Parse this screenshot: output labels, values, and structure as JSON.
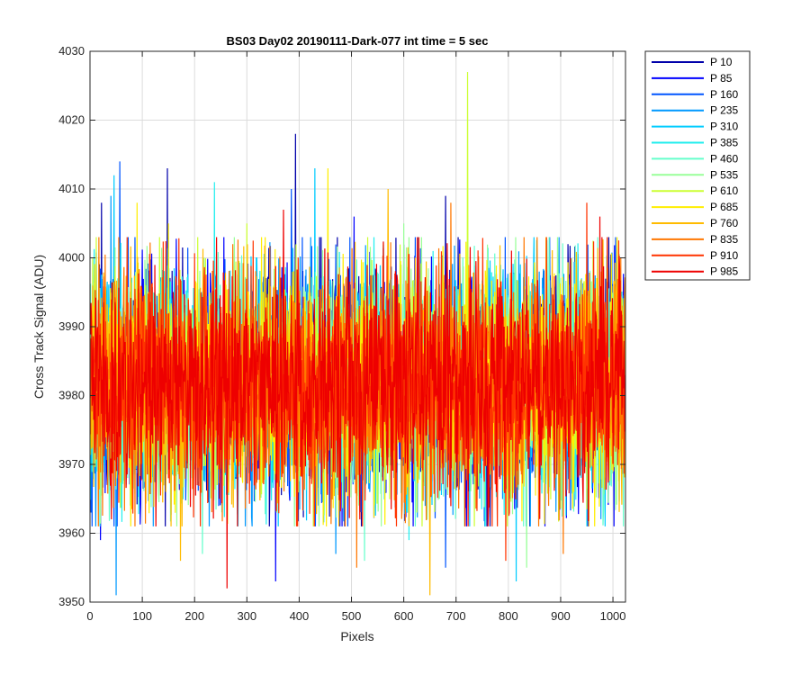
{
  "chart_data": {
    "type": "line",
    "title": "BS03 Day02 20190111-Dark-077 int time = 5 sec",
    "xlabel": "Pixels",
    "ylabel": "Cross Track Signal (ADU)",
    "xlim": [
      0,
      1024
    ],
    "ylim": [
      3950,
      4030
    ],
    "xticks": [
      0,
      100,
      200,
      300,
      400,
      500,
      600,
      700,
      800,
      900,
      1000
    ],
    "yticks": [
      3950,
      3960,
      3970,
      3980,
      3990,
      4000,
      4010,
      4020,
      4030
    ],
    "grid": true,
    "legend_position": "outside-right",
    "noise_model": {
      "mean": 3982,
      "std": 8
    },
    "series": [
      {
        "name": "P 10",
        "color": "#0000AA",
        "peaks": [
          [
            393,
            4018
          ],
          [
            148,
            4013
          ],
          [
            22,
            4008
          ],
          [
            680,
            4009
          ]
        ]
      },
      {
        "name": "P 85",
        "color": "#0000FF",
        "peaks": [
          [
            355,
            3953
          ],
          [
            20,
            3959
          ],
          [
            505,
            4006
          ]
        ]
      },
      {
        "name": "P 160",
        "color": "#0055FF",
        "peaks": [
          [
            57,
            4014
          ],
          [
            385,
            4010
          ],
          [
            680,
            3955
          ]
        ]
      },
      {
        "name": "P 235",
        "color": "#0099FF",
        "peaks": [
          [
            50,
            3951
          ],
          [
            40,
            4009
          ],
          [
            470,
            3957
          ]
        ]
      },
      {
        "name": "P 310",
        "color": "#00CCFF",
        "peaks": [
          [
            46,
            4012
          ],
          [
            815,
            3953
          ],
          [
            430,
            4013
          ]
        ]
      },
      {
        "name": "P 385",
        "color": "#22EEEE",
        "peaks": [
          [
            238,
            4011
          ],
          [
            610,
            3959
          ]
        ]
      },
      {
        "name": "P 460",
        "color": "#66FFCC",
        "peaks": [
          [
            525,
            3956
          ],
          [
            215,
            3957
          ]
        ]
      },
      {
        "name": "P 535",
        "color": "#99FF99",
        "peaks": [
          [
            835,
            3955
          ],
          [
            600,
            4005
          ]
        ]
      },
      {
        "name": "P 610",
        "color": "#CCFF33",
        "peaks": [
          [
            722,
            4027
          ],
          [
            300,
            4005
          ]
        ]
      },
      {
        "name": "P 685",
        "color": "#FFEE00",
        "peaks": [
          [
            455,
            4013
          ],
          [
            90,
            4008
          ],
          [
            150,
            4005
          ]
        ]
      },
      {
        "name": "P 760",
        "color": "#FFBB00",
        "peaks": [
          [
            570,
            4010
          ],
          [
            173,
            3956
          ],
          [
            650,
            3951
          ]
        ]
      },
      {
        "name": "P 835",
        "color": "#FF7700",
        "peaks": [
          [
            690,
            4008
          ],
          [
            510,
            3955
          ],
          [
            905,
            3957
          ]
        ]
      },
      {
        "name": "P 910",
        "color": "#FF3300",
        "peaks": [
          [
            950,
            4008
          ],
          [
            795,
            3956
          ]
        ]
      },
      {
        "name": "P 985",
        "color": "#EE0000",
        "peaks": [
          [
            262,
            3952
          ],
          [
            370,
            4007
          ],
          [
            975,
            4006
          ]
        ]
      }
    ]
  }
}
